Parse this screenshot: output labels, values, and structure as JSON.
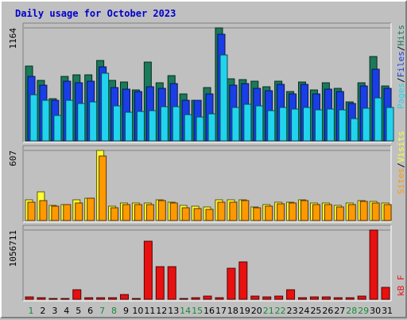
{
  "title": "Daily usage for October 2023",
  "colors": {
    "background": "#c0c0c0",
    "plot": "#c0c0c0",
    "title": "#0000cc",
    "hits": "#1a7a5a",
    "files": "#1a3ee6",
    "pages": "#22d3ee",
    "visits": "#ffff33",
    "sites": "#ff9900",
    "kbytes": "#e81010",
    "weekday_label": "#000000",
    "weekend_label": "#1a8a3a"
  },
  "legend": {
    "pages": "Pages",
    "files": "Files",
    "hits": "Hits",
    "sites": "Sites",
    "visits": "Visits",
    "kbytes": "kB F",
    "sep": "/"
  },
  "chart_data": {
    "type": "bar",
    "categories": [
      "1",
      "2",
      "3",
      "4",
      "5",
      "6",
      "7",
      "8",
      "9",
      "10",
      "11",
      "12",
      "13",
      "14",
      "15",
      "16",
      "17",
      "18",
      "19",
      "20",
      "21",
      "22",
      "23",
      "24",
      "25",
      "26",
      "27",
      "28",
      "29",
      "30",
      "31"
    ],
    "weekend_days": [
      "1",
      "7",
      "8",
      "14",
      "15",
      "21",
      "22",
      "28",
      "29"
    ],
    "panels": [
      {
        "name": "hits_files_pages",
        "ymax": 1164,
        "ymax_label": "1164",
        "series": [
          {
            "name": "Hits",
            "key": "hits",
            "values": [
              773,
              622,
              433,
              661,
              684,
              680,
              826,
              622,
              606,
              521,
              815,
              600,
              672,
              480,
              416,
              547,
              1164,
              640,
              633,
              612,
              557,
              613,
              511,
              609,
              523,
              602,
              545,
              403,
              600,
              872,
              562
            ]
          },
          {
            "name": "Files",
            "key": "files",
            "values": [
              663,
              575,
              420,
              613,
              598,
              613,
              760,
              550,
              533,
              505,
              557,
              540,
              590,
              420,
              415,
              481,
              1095,
              572,
              594,
              545,
              517,
              583,
              481,
              579,
              480,
              536,
              508,
              382,
              565,
              738,
              540
            ]
          },
          {
            "name": "Pages",
            "key": "pages",
            "values": [
              479,
              418,
              259,
              417,
              388,
              398,
              695,
              360,
              296,
              306,
              308,
              353,
              355,
              268,
              244,
              279,
              885,
              347,
              374,
              358,
              314,
              345,
              325,
              346,
              317,
              327,
              317,
              232,
              337,
              444,
              347
            ]
          }
        ]
      },
      {
        "name": "visits_sites",
        "ymax": 607,
        "ymax_label": "607",
        "series": [
          {
            "name": "Visits",
            "key": "visits",
            "values": [
              178,
              247,
              132,
              140,
              178,
              191,
              607,
              125,
              150,
              155,
              150,
              178,
              162,
              130,
              121,
              115,
              178,
              178,
              178,
              119,
              137,
              160,
              162,
              178,
              152,
              149,
              130,
              150,
              175,
              165,
              150
            ]
          },
          {
            "name": "Sites",
            "key": "sites",
            "values": [
              160,
              175,
              125,
              135,
              153,
              190,
              560,
              110,
              138,
              140,
              137,
              170,
              155,
              113,
              102,
              100,
              160,
              162,
              170,
              107,
              124,
              148,
              150,
              171,
              140,
              137,
              117,
              140,
              163,
              150,
              140
            ]
          }
        ]
      },
      {
        "name": "kbytes",
        "ymax": 1056711,
        "ymax_label": "1056711",
        "series": [
          {
            "name": "kB F",
            "key": "kbytes",
            "values": [
              35000,
              28000,
              12000,
              12000,
              140000,
              20000,
              20000,
              20000,
              75000,
              12000,
              889000,
              504000,
              504000,
              12000,
              20000,
              51000,
              20000,
              475000,
              574000,
              51000,
              35000,
              51000,
              140000,
              28000,
              35000,
              35000,
              20000,
              28000,
              51000,
              1056711,
              182000
            ]
          }
        ]
      }
    ]
  }
}
